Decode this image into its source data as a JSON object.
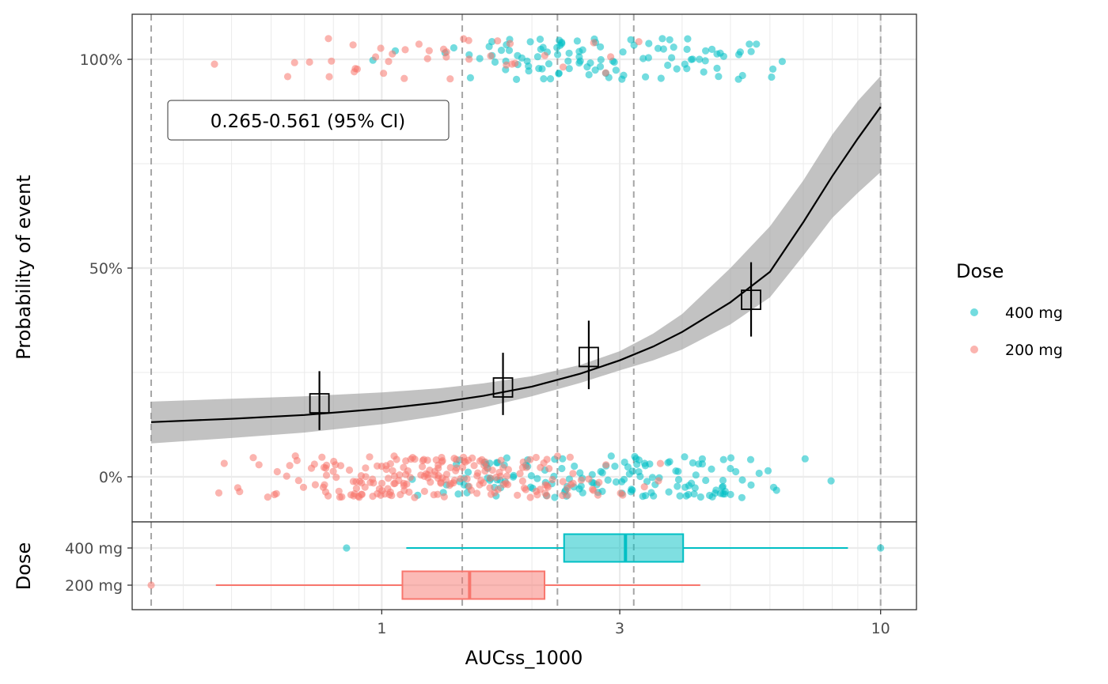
{
  "chart_data": {
    "type": "scatter",
    "title": "",
    "xlabel": "AUCss_1000",
    "ylabel": "Probability of event",
    "x_scale": "log10",
    "xlim": [
      0.316,
      11.8
    ],
    "ylim": [
      -0.108,
      1.108
    ],
    "x_ticks": [
      {
        "value": 1,
        "label": "1"
      },
      {
        "value": 3,
        "label": "3"
      },
      {
        "value": 10,
        "label": "10"
      }
    ],
    "y_ticks": [
      {
        "value": 0,
        "label": "0%"
      },
      {
        "value": 0.5,
        "label": "50%"
      },
      {
        "value": 1,
        "label": "100%"
      }
    ],
    "annotation": "0.265-0.561 (95% CI)",
    "quantile_cuts": [
      0.345,
      1.45,
      2.25,
      3.2,
      10.0
    ],
    "logistic_curve": {
      "x": [
        0.345,
        0.5,
        0.7,
        1.0,
        1.3,
        1.6,
        2.0,
        2.5,
        3.0,
        3.5,
        4.0,
        5.0,
        6.0,
        7.0,
        8.0,
        9.0,
        10.0
      ],
      "fit": [
        0.131,
        0.139,
        0.148,
        0.163,
        0.178,
        0.194,
        0.216,
        0.247,
        0.279,
        0.312,
        0.347,
        0.418,
        0.491,
        0.61,
        0.72,
        0.81,
        0.886
      ],
      "lower": [
        0.08,
        0.093,
        0.106,
        0.126,
        0.146,
        0.166,
        0.193,
        0.225,
        0.255,
        0.279,
        0.305,
        0.365,
        0.43,
        0.53,
        0.62,
        0.68,
        0.73
      ],
      "upper": [
        0.18,
        0.187,
        0.193,
        0.202,
        0.212,
        0.224,
        0.241,
        0.268,
        0.301,
        0.343,
        0.39,
        0.5,
        0.6,
        0.71,
        0.82,
        0.9,
        0.96
      ]
    },
    "binned_observed": [
      {
        "x": 0.75,
        "y": 0.176,
        "ymin": 0.112,
        "ymax": 0.253
      },
      {
        "x": 1.75,
        "y": 0.214,
        "ymin": 0.148,
        "ymax": 0.297
      },
      {
        "x": 2.6,
        "y": 0.287,
        "ymin": 0.21,
        "ymax": 0.374
      },
      {
        "x": 5.5,
        "y": 0.424,
        "ymin": 0.336,
        "ymax": 0.514
      }
    ],
    "series": [
      {
        "name": "400 mg",
        "color": "#00BFC4",
        "n_event_1": 110,
        "n_event_0": 150,
        "x_range": [
          0.85,
          10.0
        ]
      },
      {
        "name": "200 mg",
        "color": "#F8766D",
        "n_event_1": 40,
        "n_event_0": 220,
        "x_range": [
          0.345,
          4.4
        ]
      }
    ],
    "legend": {
      "title": "Dose",
      "position": "right"
    },
    "boxplot_panel": {
      "ylabel": "Dose",
      "groups": [
        {
          "name": "400 mg",
          "label": "400 mg",
          "color": "#00BFC4",
          "whisker_low": 1.12,
          "q1": 2.32,
          "median": 3.08,
          "q3": 4.02,
          "whisker_high": 8.6,
          "outliers": [
            0.85,
            10.0
          ]
        },
        {
          "name": "200 mg",
          "label": "200 mg",
          "color": "#F8766D",
          "whisker_low": 0.465,
          "q1": 1.1,
          "median": 1.5,
          "q3": 2.12,
          "whisker_high": 4.35,
          "outliers": [
            0.345
          ]
        }
      ]
    }
  }
}
